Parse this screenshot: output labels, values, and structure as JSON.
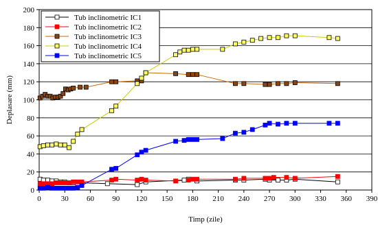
{
  "chart_data": {
    "type": "line",
    "title": "",
    "xlabel": "Timp (zile)",
    "ylabel": "Deplasare (mm)",
    "xlim": [
      0,
      390
    ],
    "ylim": [
      0,
      200
    ],
    "xticks": [
      0,
      30,
      60,
      90,
      120,
      150,
      180,
      210,
      240,
      270,
      300,
      330,
      360,
      390
    ],
    "yticks": [
      0,
      20,
      40,
      60,
      80,
      100,
      120,
      140,
      160,
      180,
      200
    ],
    "grid": "horizontal",
    "legend_position": "top-left",
    "series": [
      {
        "name": "Tub inclinometric IC1",
        "color": "#000000",
        "marker": "square-open",
        "x": [
          1,
          5,
          10,
          15,
          20,
          25,
          30,
          35,
          40,
          50,
          80,
          115,
          125,
          170,
          175,
          185,
          230,
          240,
          265,
          270,
          280,
          290,
          300,
          350
        ],
        "y": [
          12,
          11,
          11,
          10,
          10,
          9,
          9,
          8,
          8,
          8,
          7,
          6,
          9,
          11,
          12,
          10,
          11,
          11,
          12,
          11,
          11,
          11,
          12,
          9
        ]
      },
      {
        "name": "Tub inclinometric IC2",
        "color": "#ff0000",
        "marker": "square-filled",
        "x": [
          1,
          5,
          10,
          15,
          20,
          25,
          30,
          35,
          40,
          45,
          50,
          85,
          90,
          115,
          120,
          125,
          160,
          175,
          180,
          185,
          230,
          240,
          265,
          270,
          275,
          290,
          300,
          350
        ],
        "y": [
          7,
          7,
          7,
          7,
          8,
          8,
          8,
          8,
          9,
          9,
          9,
          11,
          12,
          11,
          12,
          11,
          10,
          11,
          12,
          12,
          12,
          13,
          13,
          13,
          14,
          14,
          13,
          15
        ]
      },
      {
        "name": "Tub inclinometric IC3",
        "color": "#cc6600",
        "marker": "square-brown",
        "x": [
          1,
          4,
          7,
          10,
          13,
          16,
          19,
          22,
          25,
          28,
          31,
          34,
          37,
          40,
          48,
          55,
          85,
          90,
          115,
          120,
          125,
          160,
          175,
          180,
          185,
          230,
          240,
          265,
          270,
          280,
          290,
          300,
          350
        ],
        "y": [
          102,
          104,
          106,
          104,
          104,
          102,
          103,
          103,
          104,
          107,
          112,
          111,
          112,
          113,
          114,
          114,
          120,
          120,
          121,
          121,
          130,
          129,
          128,
          128,
          128,
          118,
          118,
          117,
          117,
          118,
          118,
          119,
          118
        ]
      },
      {
        "name": "Tub inclinometric IC4",
        "color": "#cccc00",
        "marker": "square-yellow",
        "x": [
          1,
          5,
          10,
          15,
          20,
          25,
          30,
          35,
          40,
          45,
          50,
          85,
          90,
          115,
          120,
          125,
          160,
          165,
          170,
          175,
          180,
          185,
          215,
          230,
          240,
          250,
          260,
          270,
          280,
          290,
          300,
          340,
          350
        ],
        "y": [
          48,
          49,
          50,
          50,
          51,
          50,
          50,
          47,
          54,
          62,
          67,
          88,
          93,
          118,
          124,
          130,
          150,
          153,
          155,
          155,
          156,
          156,
          156,
          162,
          164,
          166,
          168,
          169,
          169,
          171,
          171,
          169,
          168
        ]
      },
      {
        "name": "Tub inclinometric IC5",
        "color": "#0000ff",
        "marker": "square-filled",
        "x": [
          1,
          5,
          10,
          15,
          20,
          25,
          30,
          35,
          40,
          45,
          50,
          85,
          90,
          115,
          120,
          125,
          160,
          170,
          175,
          180,
          185,
          215,
          230,
          240,
          250,
          265,
          270,
          280,
          290,
          300,
          340,
          350
        ],
        "y": [
          2,
          2,
          3,
          2,
          2,
          2,
          2,
          2,
          2,
          3,
          5,
          23,
          24,
          39,
          42,
          44,
          54,
          55,
          56,
          56,
          56,
          57,
          63,
          64,
          67,
          72,
          74,
          73,
          74,
          74,
          74,
          74
        ]
      }
    ]
  }
}
